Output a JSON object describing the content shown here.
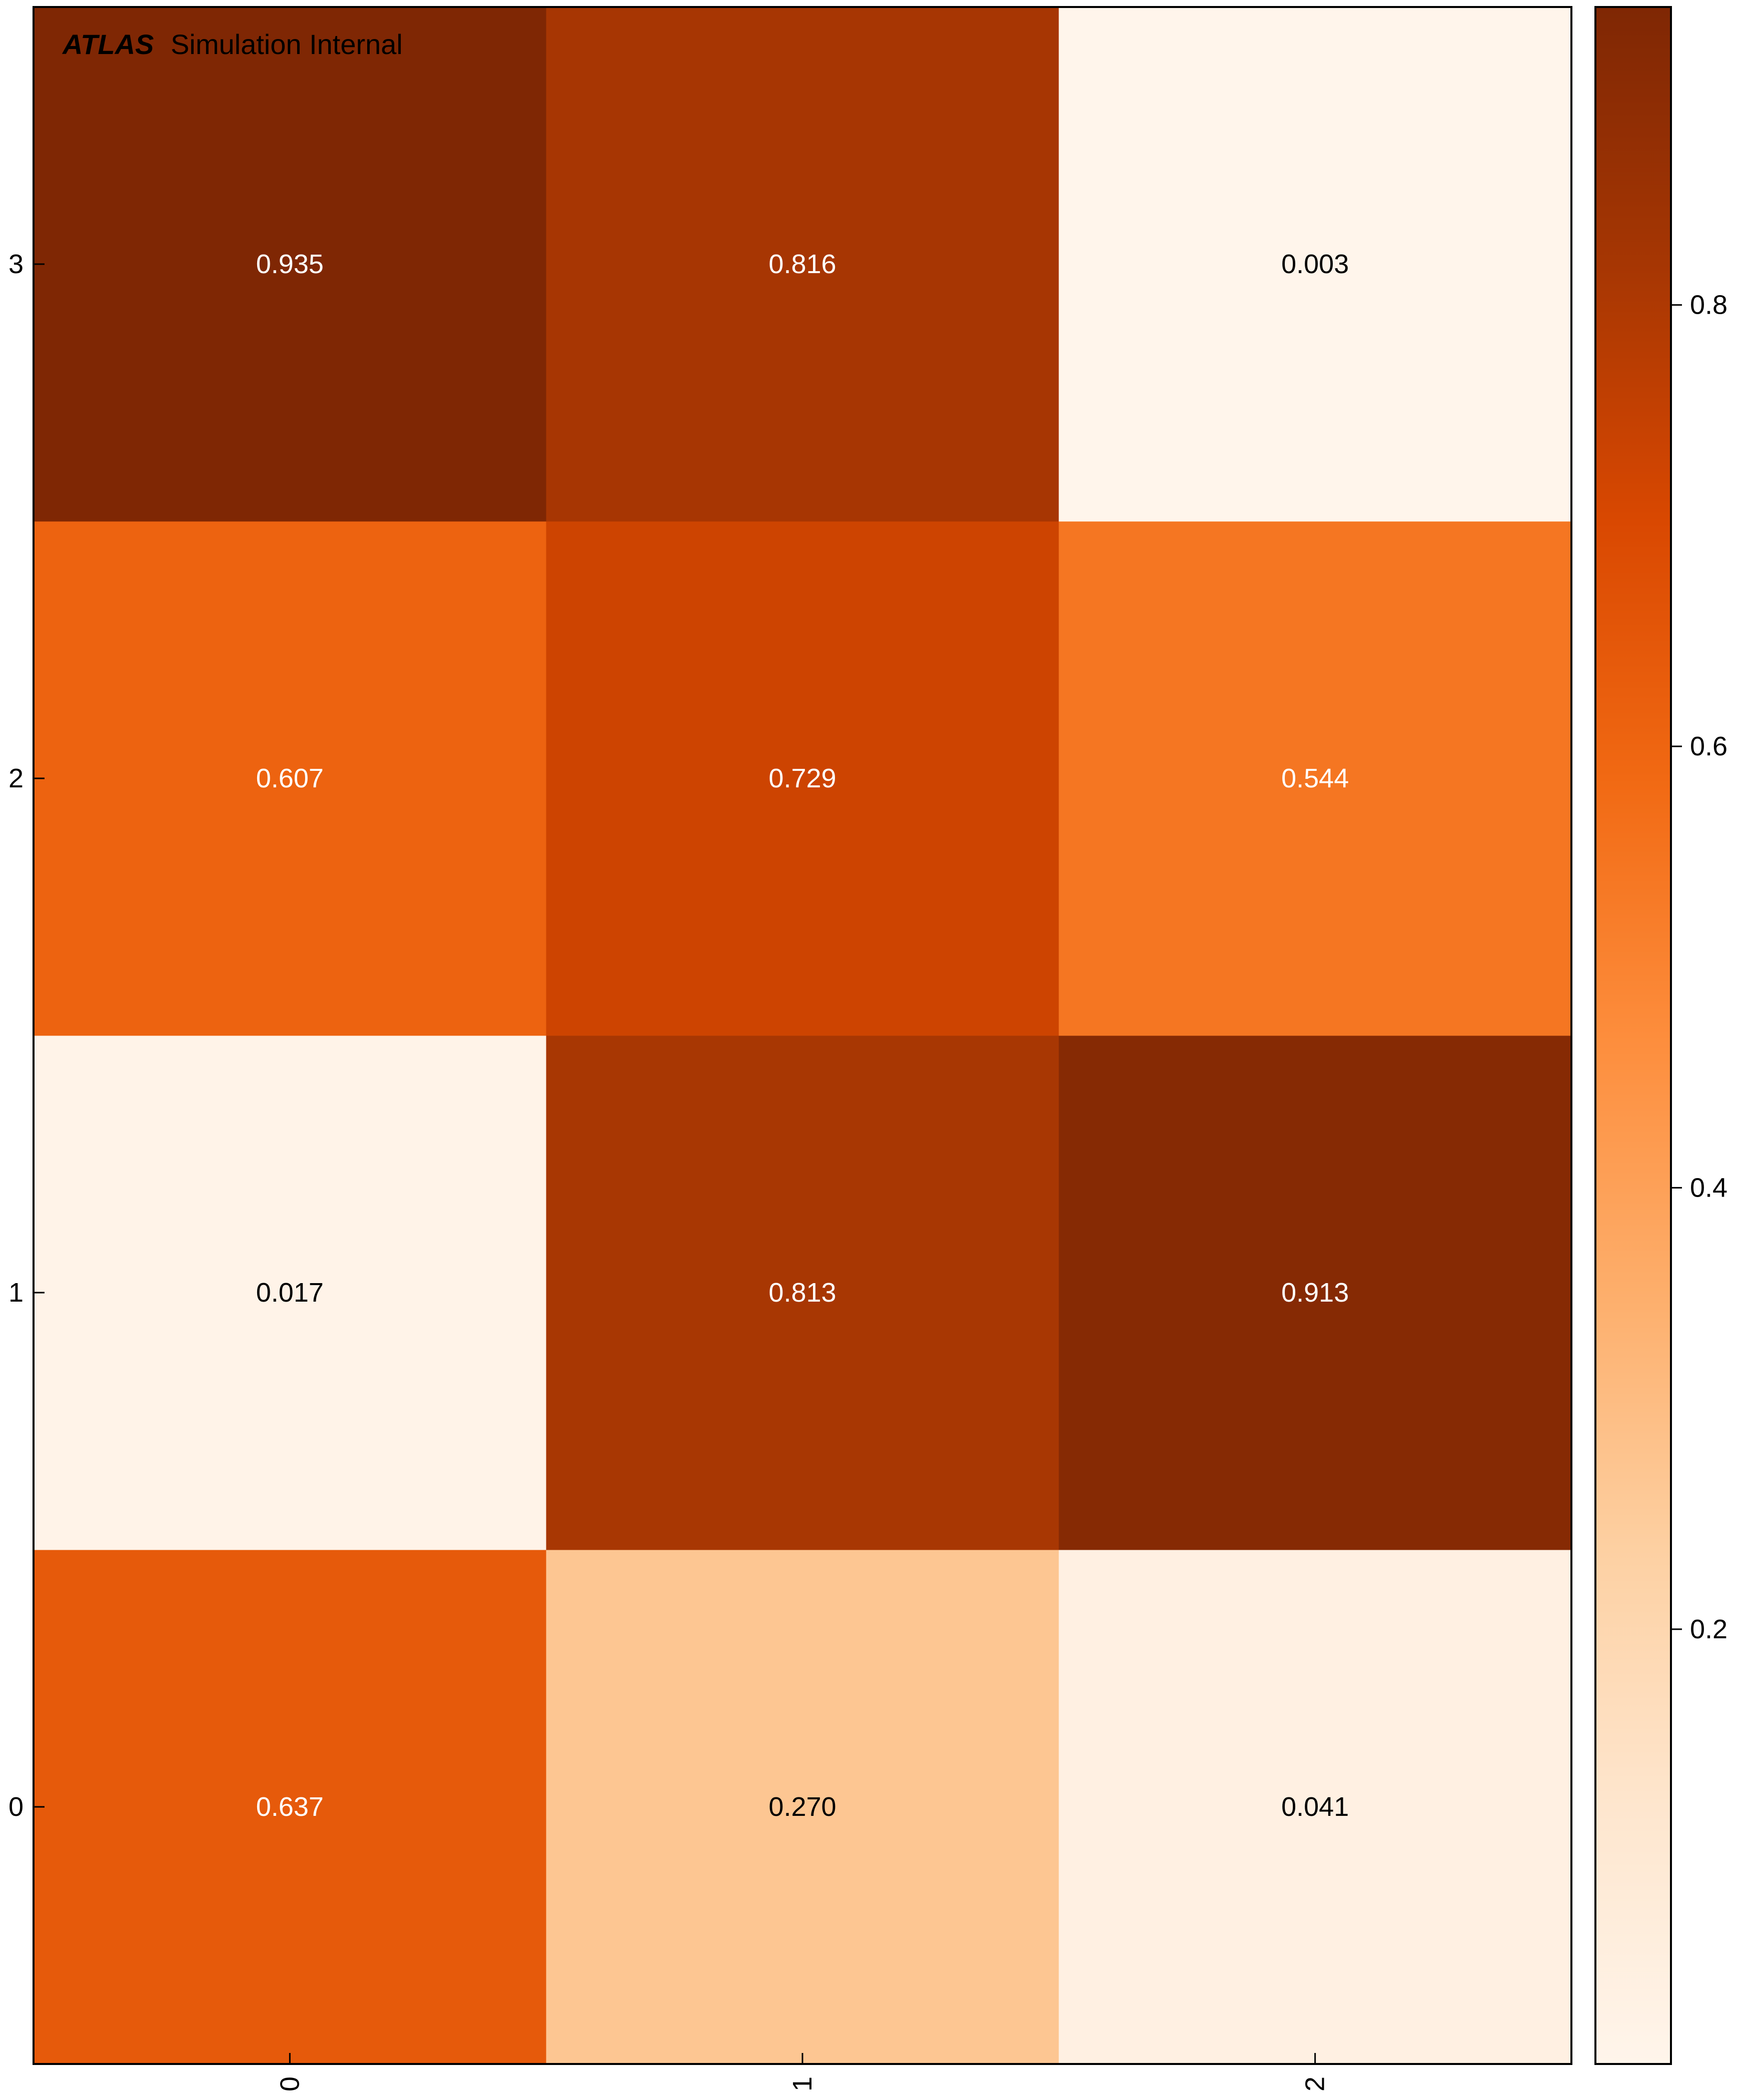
{
  "chart_data": {
    "type": "heatmap",
    "title_bold": "ATLAS",
    "title_rest": "Simulation Internal",
    "x_categories": [
      "0",
      "1",
      "2"
    ],
    "y_categories": [
      "0",
      "1",
      "2",
      "3"
    ],
    "values": [
      [
        0.637,
        0.27,
        0.041
      ],
      [
        0.017,
        0.813,
        0.913
      ],
      [
        0.607,
        0.729,
        0.544
      ],
      [
        0.935,
        0.816,
        0.003
      ]
    ],
    "value_labels": [
      [
        "0.637",
        "0.270",
        "0.041"
      ],
      [
        "0.017",
        "0.813",
        "0.913"
      ],
      [
        "0.607",
        "0.729",
        "0.544"
      ],
      [
        "0.935",
        "0.816",
        "0.003"
      ]
    ],
    "colorbar": {
      "min": 0.003,
      "max": 0.935,
      "ticks": [
        0.2,
        0.4,
        0.6,
        0.8
      ],
      "tick_labels": [
        "0.2",
        "0.4",
        "0.6",
        "0.8"
      ],
      "colormap": "Oranges"
    },
    "grid": false,
    "xlabel": "",
    "ylabel": ""
  }
}
